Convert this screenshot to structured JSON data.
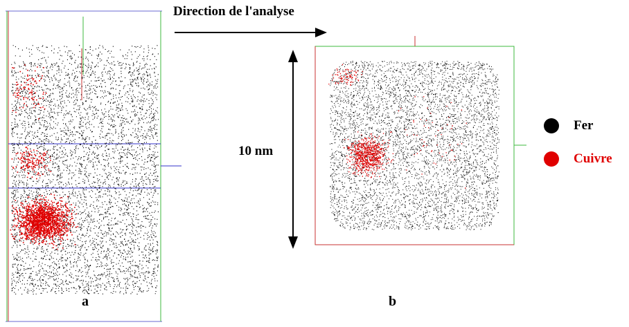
{
  "title": "Direction de l'analyse",
  "scale_label": "10 nm",
  "panels": {
    "a": "a",
    "b": "b"
  },
  "legend": [
    {
      "label": "Fer",
      "color": "#000000"
    },
    {
      "label": "Cuivre",
      "color": "#e00000"
    }
  ],
  "colors": {
    "iron": "#000000",
    "copper": "#e00000",
    "frame_green": "#3cb83c",
    "frame_blue": "#3030c8",
    "frame_red": "#c83030"
  }
}
